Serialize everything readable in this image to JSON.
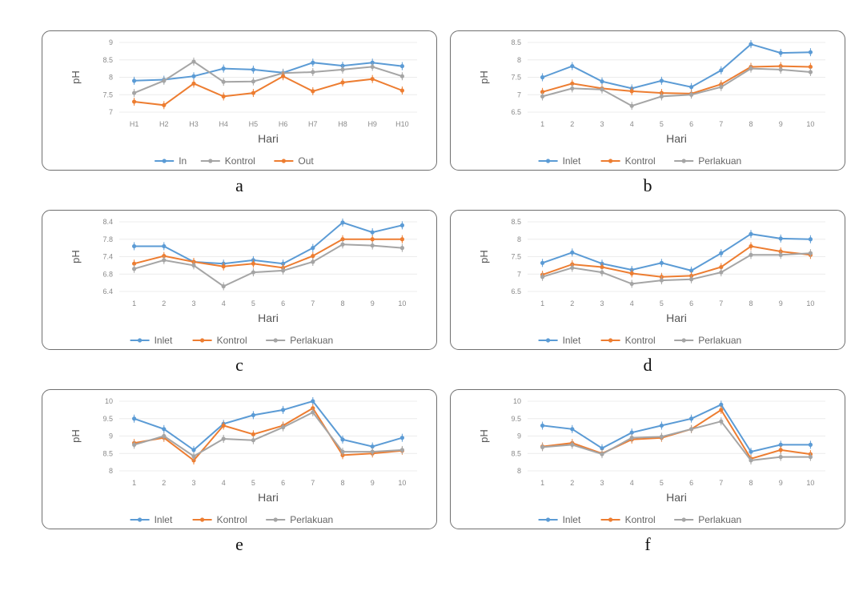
{
  "colors": {
    "blue": "#5b9bd5",
    "orange": "#ed7d31",
    "gray": "#a5a5a5"
  },
  "chart_data": [
    {
      "id": "a",
      "type": "line",
      "caption": "a",
      "xlabel": "Hari",
      "ylabel": "pH",
      "categories": [
        "H1",
        "H2",
        "H3",
        "H4",
        "H5",
        "H6",
        "H7",
        "H8",
        "H9",
        "H10"
      ],
      "yticks": [
        "7",
        "7.5",
        "8",
        "8.5",
        "9"
      ],
      "ylim": [
        7,
        9
      ],
      "series": [
        {
          "name": "In",
          "color": "#5b9bd5",
          "values": [
            7.9,
            7.93,
            8.03,
            8.25,
            8.22,
            8.13,
            8.42,
            8.33,
            8.42,
            8.32
          ]
        },
        {
          "name": "Kontrol",
          "color": "#a5a5a5",
          "values": [
            7.55,
            7.9,
            8.45,
            7.87,
            7.88,
            8.12,
            8.15,
            8.22,
            8.3,
            8.03
          ]
        },
        {
          "name": "Out",
          "color": "#ed7d31",
          "values": [
            7.3,
            7.2,
            7.82,
            7.45,
            7.55,
            8.03,
            7.6,
            7.85,
            7.95,
            7.62
          ]
        }
      ]
    },
    {
      "id": "b",
      "type": "line",
      "caption": "b",
      "xlabel": "Hari",
      "ylabel": "pH",
      "categories": [
        "1",
        "2",
        "3",
        "4",
        "5",
        "6",
        "7",
        "8",
        "9",
        "10"
      ],
      "yticks": [
        "6.5",
        "7",
        "7.5",
        "8",
        "8.5"
      ],
      "ylim": [
        6.5,
        8.5
      ],
      "series": [
        {
          "name": "Inlet",
          "color": "#5b9bd5",
          "values": [
            7.5,
            7.82,
            7.38,
            7.18,
            7.4,
            7.22,
            7.7,
            8.45,
            8.2,
            8.22
          ]
        },
        {
          "name": "Kontrol",
          "color": "#ed7d31",
          "values": [
            7.08,
            7.32,
            7.18,
            7.1,
            7.05,
            7.03,
            7.3,
            7.8,
            7.82,
            7.8
          ]
        },
        {
          "name": "Perlakuan",
          "color": "#a5a5a5",
          "values": [
            6.95,
            7.18,
            7.15,
            6.68,
            6.95,
            7.0,
            7.22,
            7.75,
            7.72,
            7.65
          ]
        }
      ]
    },
    {
      "id": "c",
      "type": "line",
      "caption": "c",
      "xlabel": "Hari",
      "ylabel": "pH",
      "categories": [
        "1",
        "2",
        "3",
        "4",
        "5",
        "6",
        "7",
        "8",
        "9",
        "10"
      ],
      "yticks": [
        "6.4",
        "6.8",
        "7.4",
        "7.8",
        "8.4"
      ],
      "ylim": [
        6.4,
        8.4
      ],
      "series": [
        {
          "name": "Inlet",
          "color": "#5b9bd5",
          "values": [
            7.7,
            7.7,
            7.25,
            7.2,
            7.3,
            7.2,
            7.65,
            8.38,
            8.1,
            8.3
          ]
        },
        {
          "name": "Kontrol",
          "color": "#ed7d31",
          "values": [
            7.2,
            7.42,
            7.25,
            7.12,
            7.2,
            7.08,
            7.42,
            7.9,
            7.9,
            7.9
          ]
        },
        {
          "name": "Perlakuan",
          "color": "#a5a5a5",
          "values": [
            7.05,
            7.3,
            7.15,
            6.55,
            6.95,
            7.0,
            7.25,
            7.75,
            7.72,
            7.65
          ]
        }
      ]
    },
    {
      "id": "d",
      "type": "line",
      "caption": "d",
      "xlabel": "Hari",
      "ylabel": "pH",
      "categories": [
        "1",
        "2",
        "3",
        "4",
        "5",
        "6",
        "7",
        "8",
        "9",
        "10"
      ],
      "yticks": [
        "6.5",
        "7",
        "7.5",
        "8",
        "8.5"
      ],
      "ylim": [
        6.5,
        8.5
      ],
      "series": [
        {
          "name": "Inlet",
          "color": "#5b9bd5",
          "values": [
            7.32,
            7.62,
            7.3,
            7.12,
            7.32,
            7.1,
            7.6,
            8.15,
            8.02,
            8.0
          ]
        },
        {
          "name": "Kontrol",
          "color": "#ed7d31",
          "values": [
            6.98,
            7.28,
            7.2,
            7.02,
            6.92,
            6.95,
            7.2,
            7.8,
            7.65,
            7.55
          ]
        },
        {
          "name": "Perlakuan",
          "color": "#a5a5a5",
          "values": [
            6.92,
            7.18,
            7.05,
            6.72,
            6.82,
            6.85,
            7.05,
            7.55,
            7.55,
            7.6
          ]
        }
      ]
    },
    {
      "id": "e",
      "type": "line",
      "caption": "e",
      "xlabel": "Hari",
      "ylabel": "pH",
      "categories": [
        "1",
        "2",
        "3",
        "4",
        "5",
        "6",
        "7",
        "8",
        "9",
        "10"
      ],
      "yticks": [
        "8",
        "8.5",
        "9",
        "9.5",
        "10"
      ],
      "ylim": [
        8,
        10
      ],
      "series": [
        {
          "name": "Inlet",
          "color": "#5b9bd5",
          "values": [
            9.5,
            9.2,
            8.6,
            9.35,
            9.6,
            9.75,
            10.0,
            8.9,
            8.7,
            8.95
          ]
        },
        {
          "name": "Kontrol",
          "color": "#ed7d31",
          "values": [
            8.8,
            8.95,
            8.3,
            9.3,
            9.05,
            9.3,
            9.8,
            8.45,
            8.5,
            8.58
          ]
        },
        {
          "name": "Perlakuan",
          "color": "#a5a5a5",
          "values": [
            8.75,
            9.0,
            8.42,
            8.92,
            8.88,
            9.25,
            9.68,
            8.55,
            8.55,
            8.6
          ]
        }
      ]
    },
    {
      "id": "f",
      "type": "line",
      "caption": "f",
      "xlabel": "Hari",
      "ylabel": "pH",
      "categories": [
        "1",
        "2",
        "3",
        "4",
        "5",
        "6",
        "7",
        "8",
        "9",
        "10"
      ],
      "yticks": [
        "8",
        "8.5",
        "9",
        "9.5",
        "10"
      ],
      "ylim": [
        8,
        10
      ],
      "series": [
        {
          "name": "Inlet",
          "color": "#5b9bd5",
          "values": [
            9.3,
            9.2,
            8.65,
            9.1,
            9.3,
            9.5,
            9.9,
            8.55,
            8.75,
            8.75
          ]
        },
        {
          "name": "Kontrol",
          "color": "#ed7d31",
          "values": [
            8.7,
            8.8,
            8.5,
            8.9,
            8.95,
            9.2,
            9.75,
            8.35,
            8.6,
            8.48
          ]
        },
        {
          "name": "Perlakuan",
          "color": "#a5a5a5",
          "values": [
            8.68,
            8.75,
            8.48,
            8.95,
            8.98,
            9.2,
            9.42,
            8.3,
            8.4,
            8.4
          ]
        }
      ]
    }
  ]
}
